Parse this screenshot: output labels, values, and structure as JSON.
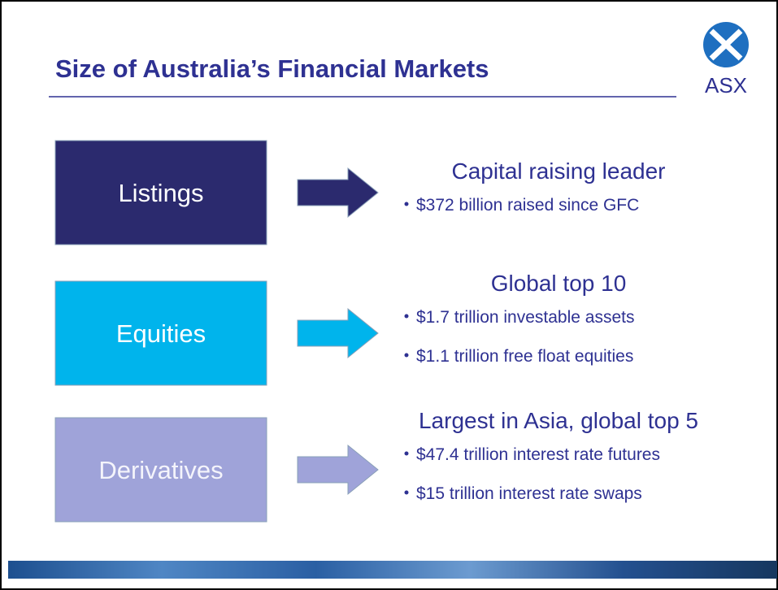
{
  "header": {
    "title": "Size of Australia’s Financial Markets",
    "logo": "ASX"
  },
  "rows": [
    {
      "label": "Listings",
      "heading": "Capital raising leader",
      "bullets": [
        "$372 billion raised since GFC"
      ]
    },
    {
      "label": "Equities",
      "heading": "Global top 10",
      "bullets": [
        "$1.7 trillion investable  assets",
        "$1.1 trillion free float equities"
      ]
    },
    {
      "label": "Derivatives",
      "heading": "Largest in Asia, global top 5",
      "bullets": [
        "$47.4 trillion interest rate futures",
        "$15 trillion interest rate swaps"
      ]
    }
  ]
}
